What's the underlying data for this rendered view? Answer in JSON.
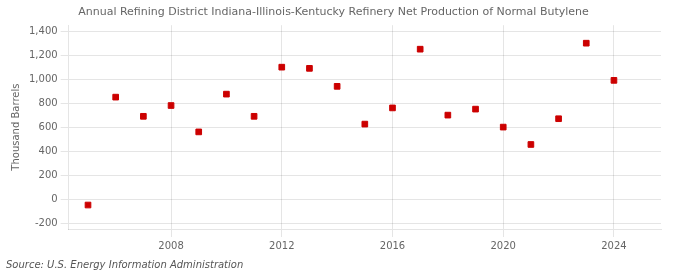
{
  "chart_data": {
    "type": "scatter",
    "title": "Annual Refining District Indiana-Illinois-Kentucky Refinery Net Production of Normal Butylene",
    "ylabel": "Thousand Barrels",
    "source": "Source: U.S. Energy Information Administration",
    "x": [
      2005,
      2006,
      2007,
      2008,
      2009,
      2010,
      2011,
      2012,
      2013,
      2014,
      2015,
      2016,
      2017,
      2018,
      2019,
      2020,
      2021,
      2022,
      2023,
      2024
    ],
    "values": [
      -50,
      850,
      690,
      780,
      560,
      875,
      690,
      1100,
      1090,
      940,
      625,
      760,
      1250,
      700,
      750,
      600,
      455,
      670,
      1300,
      990
    ],
    "color": "#cc0000",
    "marker": "square",
    "xlim": [
      2004.3,
      2025.7
    ],
    "xticks": [
      2008,
      2012,
      2016,
      2020,
      2024
    ],
    "ylim": [
      -250,
      1450
    ],
    "yticks": [
      -200,
      0,
      200,
      400,
      600,
      800,
      {
        "value": 1000,
        "label": "1,000"
      },
      {
        "value": 1200,
        "label": "1,200"
      },
      {
        "value": 1400,
        "label": "1,400"
      }
    ],
    "grid": true
  }
}
